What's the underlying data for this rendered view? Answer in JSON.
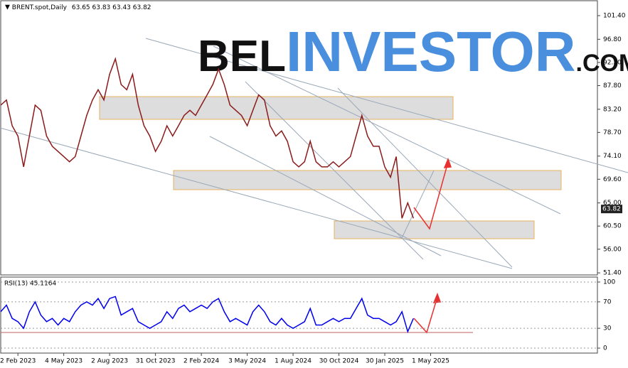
{
  "header": {
    "symbol": "BRENT.spot,Daily",
    "ohlc": "63.65 63.83 63.43 63.82"
  },
  "logo": {
    "part1": "BEL",
    "part2": "INVESTOR",
    "part3": ".COM"
  },
  "chart_data": [
    {
      "type": "line",
      "color": "#8b1a1a",
      "categories": [
        null,
        null,
        null,
        "2 Feb 2023",
        null,
        null,
        null,
        null,
        null,
        null,
        null,
        "4 May 2023",
        null,
        null,
        null,
        null,
        null,
        null,
        null,
        "2 Aug 2023",
        null,
        null,
        null,
        null,
        null,
        null,
        null,
        "31 Oct 2023",
        null,
        null,
        null,
        null,
        null,
        null,
        null,
        "2 Feb 2024",
        null,
        null,
        null,
        null,
        null,
        null,
        null,
        "3 May 2024",
        null,
        null,
        null,
        null,
        null,
        null,
        null,
        "1 Aug 2024",
        null,
        null,
        null,
        null,
        null,
        null,
        null,
        "30 Oct 2024",
        null,
        null,
        null,
        null,
        null,
        null,
        null,
        "30 Jan 2025",
        null,
        null,
        null,
        null,
        null,
        null,
        null,
        "1 May 2025"
      ],
      "values": [
        84,
        85,
        80,
        78,
        72,
        78,
        84,
        83,
        78,
        76,
        75,
        74,
        73,
        74,
        78,
        82,
        85,
        87,
        85,
        90,
        93,
        88,
        87,
        90,
        84,
        80,
        78,
        75,
        77,
        80,
        78,
        80,
        82,
        83,
        82,
        84,
        86,
        88,
        91,
        88,
        84,
        83,
        82,
        80,
        83,
        86,
        85,
        80,
        78,
        79,
        77,
        73,
        72,
        73,
        77,
        73,
        72,
        72,
        73,
        72,
        73,
        74,
        78,
        82,
        78,
        76,
        76,
        72,
        70,
        74,
        62,
        65,
        62,
        null,
        null,
        null
      ],
      "last_price": 63.82,
      "ylim": [
        51,
        104.3
      ],
      "yticks": [
        {
          "value": 101.4,
          "label": "101.40"
        },
        {
          "value": 96.8,
          "label": "96.80"
        },
        {
          "value": 92.3,
          "label": "92.30"
        },
        {
          "value": 87.8,
          "label": "87.80"
        },
        {
          "value": 83.2,
          "label": "83.20"
        },
        {
          "value": 78.7,
          "label": "78.70"
        },
        {
          "value": 74.1,
          "label": "74.10"
        },
        {
          "value": 69.6,
          "label": "69.60"
        },
        {
          "value": 65,
          "label": "65.00"
        },
        {
          "value": 60.5,
          "label": "60.50"
        },
        {
          "value": 56,
          "label": "56.00"
        },
        {
          "value": 51.4,
          "label": "51.40"
        }
      ],
      "grid": false
    },
    {
      "type": "line",
      "title": "RSI(13) 45.1164",
      "color": "#0000ee",
      "values": [
        55,
        65,
        45,
        40,
        30,
        55,
        70,
        50,
        40,
        45,
        35,
        45,
        40,
        55,
        65,
        70,
        65,
        75,
        60,
        75,
        78,
        50,
        55,
        60,
        40,
        35,
        30,
        35,
        40,
        55,
        45,
        60,
        65,
        55,
        60,
        65,
        60,
        70,
        75,
        55,
        40,
        45,
        40,
        35,
        55,
        65,
        55,
        40,
        35,
        45,
        35,
        30,
        35,
        40,
        60,
        35,
        35,
        40,
        45,
        40,
        45,
        45,
        60,
        75,
        50,
        45,
        45,
        40,
        35,
        40,
        55,
        25,
        45,
        null,
        null,
        null
      ],
      "ylim": [
        -7.5,
        107.5
      ],
      "yticks": [
        0,
        30,
        70,
        100
      ],
      "grid": true
    }
  ]
}
